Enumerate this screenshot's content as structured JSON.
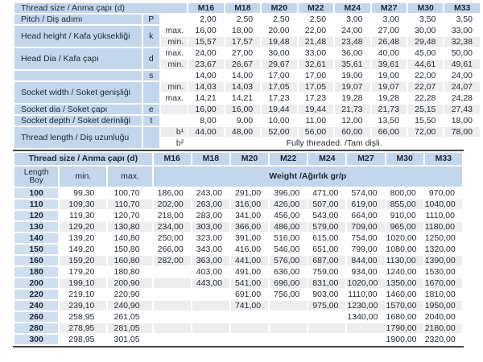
{
  "colors": {
    "header_blue": "#c3d6eb",
    "row_label_blue": "#cfdff0",
    "stripe_gray": "#ededed",
    "divider_dark": "#454545",
    "text": "#1f2733"
  },
  "sizes": [
    "M16",
    "M18",
    "M20",
    "M22",
    "M24",
    "M27",
    "M30",
    "M33"
  ],
  "top_table": {
    "header_label": "Thread size / Anma çapı (d)",
    "rows": [
      {
        "label": "Pitch / Diş adımı",
        "label_rows": 1,
        "symbol": "P",
        "symbol_rows": 1,
        "sub": "",
        "values": [
          "2,00",
          "2,50",
          "2,50",
          "2,50",
          "3,00",
          "3,00",
          "3,50",
          "3,50"
        ]
      },
      {
        "label": "Head height / Kafa yüksekliği",
        "label_rows": 2,
        "symbol": "k",
        "symbol_rows": 2,
        "sub": "max.",
        "values": [
          "16,00",
          "18,00",
          "20,00",
          "22,00",
          "24,00",
          "27,00",
          "30,00",
          "33,00"
        ]
      },
      {
        "label": null,
        "symbol": null,
        "sub": "min.",
        "values": [
          "15,57",
          "17,57",
          "19,48",
          "21,48",
          "23,48",
          "26,48",
          "29,48",
          "32,38"
        ]
      },
      {
        "label": "Head Dia / Kafa çapı",
        "label_rows": 2,
        "symbol": "d",
        "symbol_rows": 2,
        "sub": "max.",
        "values": [
          "24,00",
          "27,00",
          "30,00",
          "33,00",
          "36,00",
          "40,00",
          "45,00",
          "50,00"
        ]
      },
      {
        "label": null,
        "symbol": null,
        "sub": "min.",
        "values": [
          "23,67",
          "26,67",
          "29,67",
          "32,61",
          "35,61",
          "39,61",
          "44,61",
          "49,61"
        ]
      },
      {
        "label": "",
        "label_rows": 1,
        "symbol": "s",
        "symbol_rows": 1,
        "sub": "",
        "values": [
          "14,00",
          "14,00",
          "17,00",
          "17,00",
          "19,00",
          "19,00",
          "22,00",
          "24,00"
        ]
      },
      {
        "label": "Socket width / Soket genişliği",
        "label_rows": 2,
        "symbol": "",
        "symbol_rows": 2,
        "sub": "min.",
        "values": [
          "14,03",
          "14,03",
          "17,05",
          "17,05",
          "19,07",
          "19,07",
          "22,07",
          "24,07"
        ]
      },
      {
        "label": null,
        "symbol": null,
        "sub": "max.",
        "values": [
          "14,21",
          "14,21",
          "17,23",
          "17,23",
          "19,28",
          "19,28",
          "22,28",
          "24,28"
        ]
      },
      {
        "label": "Socket dia / Soket çapı",
        "label_rows": 1,
        "symbol": "e",
        "symbol_rows": 1,
        "sub": "",
        "values": [
          "16,00",
          "16,00",
          "19,44",
          "19,44",
          "21,73",
          "21,73",
          "25,15",
          "27,43"
        ]
      },
      {
        "label": "Socket depth / Soket derinliği",
        "label_rows": 1,
        "symbol": "t",
        "symbol_rows": 1,
        "sub": "",
        "values": [
          "8,00",
          "9,00",
          "10,00",
          "11,00",
          "12,00",
          "13,50",
          "15,50",
          "18,00"
        ]
      },
      {
        "label": "Thread length / Diş uzunluğu",
        "label_rows": 2,
        "symbol": "",
        "symbol_rows": 2,
        "sub": "b¹",
        "values": [
          "44,00",
          "48,00",
          "52,00",
          "56,00",
          "60,00",
          "66,00",
          "72,00",
          "78,00"
        ]
      },
      {
        "label": null,
        "symbol": null,
        "sub": "b²",
        "span_text": "Fully threaded. /Tam dişli."
      }
    ]
  },
  "bottom_table": {
    "header_label": "Thread size / Anma çapı (d)",
    "length_label": "Length",
    "boy_label": "Boy",
    "min_label": "min.",
    "max_label": "max.",
    "weight_label": "Weight /Ağırlık gr/p",
    "rows": [
      {
        "length": "100",
        "min": "99,30",
        "max": "100,70",
        "weights": [
          "186,00",
          "243,00",
          "291,00",
          "396,00",
          "471,00",
          "574,00",
          "800,00",
          "970,00"
        ]
      },
      {
        "length": "110",
        "min": "109,30",
        "max": "110,70",
        "weights": [
          "202,00",
          "263,00",
          "316,00",
          "426,00",
          "507,00",
          "619,00",
          "855,00",
          "1040,00"
        ]
      },
      {
        "length": "120",
        "min": "119,30",
        "max": "120,70",
        "weights": [
          "218,00",
          "283,00",
          "341,00",
          "456,00",
          "543,00",
          "664,00",
          "910,00",
          "1110,00"
        ]
      },
      {
        "length": "130",
        "min": "129,20",
        "max": "130,80",
        "weights": [
          "234,00",
          "303,00",
          "366,00",
          "486,00",
          "579,00",
          "709,00",
          "965,00",
          "1180,00"
        ]
      },
      {
        "length": "140",
        "min": "139,20",
        "max": "140,80",
        "weights": [
          "250,00",
          "323,00",
          "391,00",
          "516,00",
          "615,00",
          "754,00",
          "1020,00",
          "1250,00"
        ]
      },
      {
        "length": "150",
        "min": "149,20",
        "max": "150,80",
        "weights": [
          "266,00",
          "343,00",
          "416,00",
          "546,00",
          "651,00",
          "799,00",
          "1080,00",
          "1320,00"
        ]
      },
      {
        "length": "160",
        "min": "159,20",
        "max": "160,80",
        "weights": [
          "282,00",
          "363,00",
          "441,00",
          "576,00",
          "687,00",
          "844,00",
          "1130,00",
          "1390,00"
        ]
      },
      {
        "length": "180",
        "min": "179,20",
        "max": "180,80",
        "weights": [
          "",
          "403,00",
          "491,00",
          "636,00",
          "759,00",
          "934,00",
          "1240,00",
          "1530,00"
        ]
      },
      {
        "length": "200",
        "min": "199,10",
        "max": "200,90",
        "weights": [
          "",
          "443,00",
          "541,00",
          "696,00",
          "831,00",
          "1020,00",
          "1350,00",
          "1670,00"
        ]
      },
      {
        "length": "220",
        "min": "219,10",
        "max": "220,90",
        "weights": [
          "",
          "",
          "691,00",
          "756,00",
          "903,00",
          "1110,00",
          "1460,00",
          "1810,00"
        ]
      },
      {
        "length": "240",
        "min": "239,10",
        "max": "240,90",
        "weights": [
          "",
          "",
          "741,00",
          "",
          "975,00",
          "1230,00",
          "1570,00",
          "1950,00"
        ]
      },
      {
        "length": "260",
        "min": "258,95",
        "max": "261,05",
        "weights": [
          "",
          "",
          "",
          "",
          "",
          "1340,00",
          "1680,00",
          "2040,00"
        ]
      },
      {
        "length": "280",
        "min": "278,95",
        "max": "281,05",
        "weights": [
          "",
          "",
          "",
          "",
          "",
          "",
          "1790,00",
          "2180,00"
        ]
      },
      {
        "length": "300",
        "min": "298,95",
        "max": "301,05",
        "weights": [
          "",
          "",
          "",
          "",
          "",
          "",
          "1900,00",
          "2320,00"
        ]
      }
    ]
  }
}
